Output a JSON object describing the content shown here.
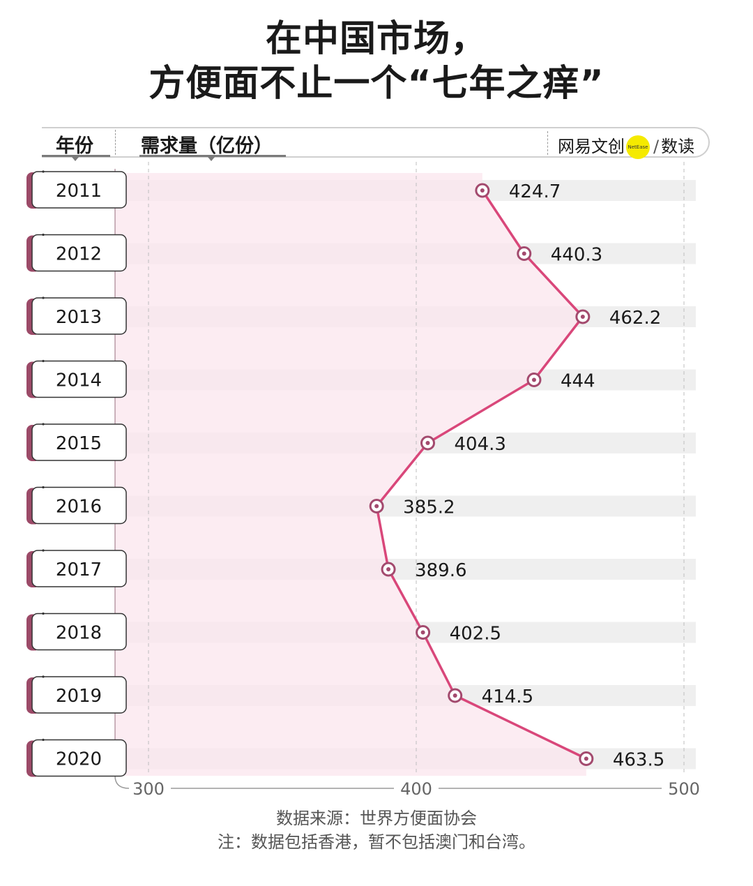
{
  "title_line1": "在中国市场，",
  "title_line2": "方便面不止一个“七年之痒”",
  "header": {
    "year_label": "年份",
    "demand_label": "需求量（亿份）"
  },
  "logo": {
    "text": "网易文创",
    "badge": "NetEase",
    "slash": "/",
    "suffix": "数读"
  },
  "colors": {
    "line": "#d9477a",
    "marker": "#a34a6e",
    "area": "#fbe6ee",
    "band": "#efefef",
    "tab_accent": "#9c4a68"
  },
  "chart_data": {
    "type": "line",
    "orientation": "horizontal",
    "categories": [
      "2011",
      "2012",
      "2013",
      "2014",
      "2015",
      "2016",
      "2017",
      "2018",
      "2019",
      "2020"
    ],
    "values": [
      424.7,
      440.3,
      462.2,
      444,
      404.3,
      385.2,
      389.6,
      402.5,
      414.5,
      463.5
    ],
    "value_labels": [
      "424.7",
      "440.3",
      "462.2",
      "444",
      "404.3",
      "385.2",
      "389.6",
      "402.5",
      "414.5",
      "463.5"
    ],
    "xlim": [
      300,
      500
    ],
    "ticks": [
      300,
      400,
      500
    ],
    "tick_labels": [
      "300",
      "400",
      "500"
    ],
    "grid": true
  },
  "source": {
    "line1": "数据来源：世界方便面协会",
    "line2": "注：数据包括香港，暂不包括澳门和台湾。"
  }
}
